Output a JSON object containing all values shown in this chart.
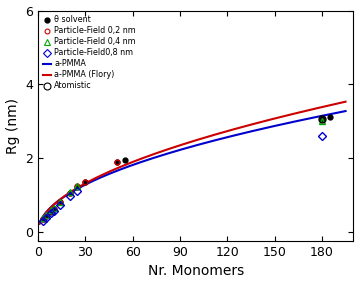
{
  "theta_x": [
    3,
    5,
    8,
    10,
    14,
    20,
    25,
    30,
    50,
    55,
    180,
    185
  ],
  "theta_y": [
    0.35,
    0.42,
    0.55,
    0.62,
    0.8,
    1.05,
    1.22,
    1.35,
    1.88,
    1.95,
    3.05,
    3.1
  ],
  "pf02_x": [
    3,
    5,
    8,
    10,
    14,
    20,
    25,
    30,
    50
  ],
  "pf02_y": [
    0.36,
    0.44,
    0.57,
    0.63,
    0.81,
    1.06,
    1.23,
    1.36,
    1.9
  ],
  "pf04_x": [
    3,
    5,
    8,
    10,
    14,
    20,
    25,
    180
  ],
  "pf04_y": [
    0.37,
    0.45,
    0.58,
    0.64,
    0.82,
    1.07,
    1.24,
    3.0
  ],
  "pf08_x": [
    3,
    5,
    8,
    10,
    14,
    20,
    25,
    180
  ],
  "pf08_y": [
    0.3,
    0.37,
    0.5,
    0.57,
    0.74,
    0.97,
    1.12,
    2.6
  ],
  "atomistic_x": [
    180
  ],
  "atomistic_y": [
    3.05
  ],
  "curve_x_min": 1,
  "curve_x_max": 195,
  "blue_a": 0.232,
  "blue_nu": 0.502,
  "red_a": 0.218,
  "red_nu": 0.528,
  "xlim": [
    0,
    200
  ],
  "ylim": [
    -0.25,
    6
  ],
  "yticks": [
    0,
    2,
    4,
    6
  ],
  "xticks": [
    0,
    30,
    60,
    90,
    120,
    150,
    180
  ],
  "xlabel": "Nr. Monomers",
  "ylabel": "Rg (nm)",
  "legend_labels": [
    "θ solvent",
    "Particle-Field 0,2 nm",
    "Particle-Field 0,4 nm",
    "Particle-Field0,8 nm",
    "a-PMMA",
    "a-PMMA (Flory)",
    "Atomistic"
  ],
  "blue_line_color": "#0000cc",
  "red_line_color": "#cc0000",
  "theta_color": "#000000",
  "pf02_color": "#cc0000",
  "pf04_color": "#00aa00",
  "pf08_color": "#0000cc",
  "atomistic_color": "#000000",
  "legend_fontsize": 5.8,
  "axis_labelsize": 10,
  "tick_labelsize": 9
}
